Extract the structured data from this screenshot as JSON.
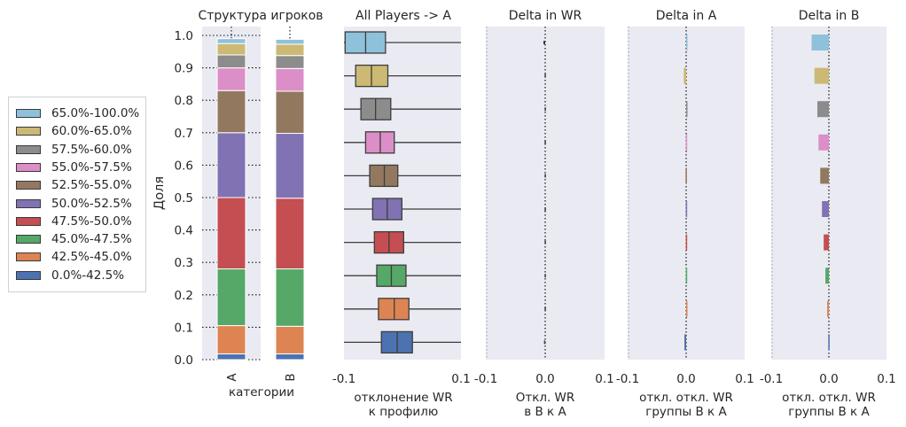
{
  "legend": {
    "items": [
      {
        "label": "65.0%-100.0%",
        "color": "#8ec1da"
      },
      {
        "label": "60.0%-65.0%",
        "color": "#ccb974"
      },
      {
        "label": "57.5%-60.0%",
        "color": "#8c8c8c"
      },
      {
        "label": "55.0%-57.5%",
        "color": "#dc8ec8"
      },
      {
        "label": "52.5%-55.0%",
        "color": "#937860"
      },
      {
        "label": "50.0%-52.5%",
        "color": "#8172b3"
      },
      {
        "label": "47.5%-50.0%",
        "color": "#c44e52"
      },
      {
        "label": "45.0%-47.5%",
        "color": "#55a868"
      },
      {
        "label": "42.5%-45.0%",
        "color": "#dd8452"
      },
      {
        "label": "0.0%-42.5%",
        "color": "#4c72b0"
      }
    ]
  },
  "chart_data": [
    {
      "type": "bar",
      "stacked": true,
      "title": "Структура игроков",
      "xlabel": "категории",
      "ylabel": "Доля",
      "categories": [
        "A",
        "B"
      ],
      "ylim": [
        0,
        1.0
      ],
      "yticks": [
        "0.0",
        "0.1",
        "0.2",
        "0.3",
        "0.4",
        "0.5",
        "0.6",
        "0.7",
        "0.8",
        "0.9",
        "1.0"
      ],
      "series": [
        {
          "name": "0.0%-42.5%",
          "values": [
            0.018,
            0.018
          ]
        },
        {
          "name": "42.5%-45.0%",
          "values": [
            0.087,
            0.085
          ]
        },
        {
          "name": "45.0%-47.5%",
          "values": [
            0.175,
            0.177
          ]
        },
        {
          "name": "47.5%-50.0%",
          "values": [
            0.22,
            0.218
          ]
        },
        {
          "name": "50.0%-52.5%",
          "values": [
            0.2,
            0.2
          ]
        },
        {
          "name": "52.5%-55.0%",
          "values": [
            0.13,
            0.13
          ]
        },
        {
          "name": "55.0%-57.5%",
          "values": [
            0.07,
            0.07
          ]
        },
        {
          "name": "57.5%-60.0%",
          "values": [
            0.04,
            0.04
          ]
        },
        {
          "name": "60.0%-65.0%",
          "values": [
            0.035,
            0.035
          ]
        },
        {
          "name": "65.0%-100.0%",
          "values": [
            0.015,
            0.015
          ]
        }
      ]
    },
    {
      "type": "box",
      "title": "All Players -> A",
      "xlabel": "отклонение WR\nк профилю",
      "xlim": [
        -0.1,
        0.1
      ],
      "xticks": [
        "-0.1",
        "0.1"
      ],
      "boxes": [
        {
          "name": "65.0%-100.0%",
          "q1": -0.098,
          "median": -0.063,
          "q3": -0.029,
          "whisker_low": -0.1,
          "whisker_high": 0.1
        },
        {
          "name": "60.0%-65.0%",
          "q1": -0.08,
          "median": -0.053,
          "q3": -0.025,
          "whisker_low": -0.1,
          "whisker_high": 0.1
        },
        {
          "name": "57.5%-60.0%",
          "q1": -0.071,
          "median": -0.046,
          "q3": -0.02,
          "whisker_low": -0.1,
          "whisker_high": 0.1
        },
        {
          "name": "55.0%-57.5%",
          "q1": -0.063,
          "median": -0.038,
          "q3": -0.014,
          "whisker_low": -0.1,
          "whisker_high": 0.1
        },
        {
          "name": "52.5%-55.0%",
          "q1": -0.056,
          "median": -0.031,
          "q3": -0.008,
          "whisker_low": -0.1,
          "whisker_high": 0.1
        },
        {
          "name": "50.0%-52.5%",
          "q1": -0.051,
          "median": -0.026,
          "q3": -0.001,
          "whisker_low": -0.1,
          "whisker_high": 0.1
        },
        {
          "name": "47.5%-50.0%",
          "q1": -0.048,
          "median": -0.023,
          "q3": 0.002,
          "whisker_low": -0.1,
          "whisker_high": 0.1
        },
        {
          "name": "45.0%-47.5%",
          "q1": -0.044,
          "median": -0.019,
          "q3": 0.006,
          "whisker_low": -0.1,
          "whisker_high": 0.1
        },
        {
          "name": "42.5%-45.0%",
          "q1": -0.041,
          "median": -0.014,
          "q3": 0.011,
          "whisker_low": -0.1,
          "whisker_high": 0.1
        },
        {
          "name": "0.0%-42.5%",
          "q1": -0.036,
          "median": -0.009,
          "q3": 0.017,
          "whisker_low": -0.1,
          "whisker_high": 0.1
        }
      ]
    },
    {
      "type": "bar",
      "orientation": "horizontal",
      "title": "Delta in WR",
      "xlabel": "Откл. WR\nв В к А",
      "xlim": [
        -0.1,
        0.1
      ],
      "xticks": [
        "-0.1",
        "0.0",
        "0.1"
      ],
      "categories": [
        "65.0%-100.0%",
        "60.0%-65.0%",
        "57.5%-60.0%",
        "55.0%-57.5%",
        "52.5%-55.0%",
        "50.0%-52.5%",
        "47.5%-50.0%",
        "45.0%-47.5%",
        "42.5%-45.0%",
        "0.0%-42.5%"
      ],
      "values": [
        -0.003,
        -0.001,
        -0.001,
        -0.001,
        -0.001,
        -0.001,
        -0.001,
        -0.001,
        -0.001,
        -0.002
      ]
    },
    {
      "type": "bar",
      "orientation": "horizontal",
      "title": "Delta in A",
      "xlabel": "откл. откл. WR\nгруппы В к А",
      "xlim": [
        -0.1,
        0.1
      ],
      "xticks": [
        "-0.1",
        "0.0",
        "0.1"
      ],
      "categories": [
        "65.0%-100.0%",
        "60.0%-65.0%",
        "57.5%-60.0%",
        "55.0%-57.5%",
        "52.5%-55.0%",
        "50.0%-52.5%",
        "47.5%-50.0%",
        "45.0%-47.5%",
        "42.5%-45.0%",
        "0.0%-42.5%"
      ],
      "values": [
        0.001,
        -0.004,
        0.001,
        -0.0005,
        -0.001,
        -0.0005,
        -0.0005,
        -0.0005,
        0.0005,
        -0.003
      ]
    },
    {
      "type": "bar",
      "orientation": "horizontal",
      "title": "Delta in B",
      "xlabel": "откл. откл. WR\nгруппы В к А",
      "xlim": [
        -0.1,
        0.1
      ],
      "xticks": [
        "-0.1",
        "0.0",
        "0.1"
      ],
      "categories": [
        "65.0%-100.0%",
        "60.0%-65.0%",
        "57.5%-60.0%",
        "55.0%-57.5%",
        "52.5%-55.0%",
        "50.0%-52.5%",
        "47.5%-50.0%",
        "45.0%-47.5%",
        "42.5%-45.0%",
        "0.0%-42.5%"
      ],
      "values": [
        -0.03,
        -0.025,
        -0.02,
        -0.018,
        -0.015,
        -0.012,
        -0.009,
        -0.006,
        -0.003,
        -0.001
      ]
    }
  ]
}
